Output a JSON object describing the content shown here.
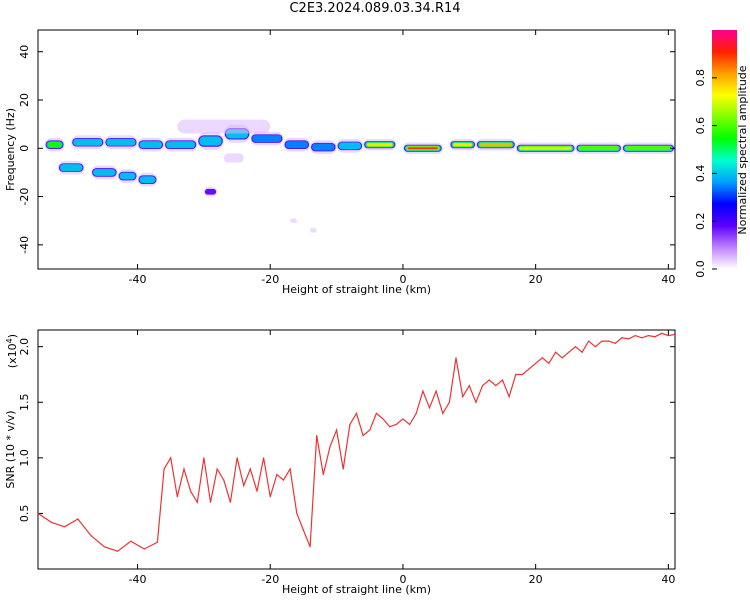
{
  "title": "C2E3.2024.089.03.34.R14",
  "chart_data": [
    {
      "type": "heatmap",
      "xlabel": "Height of straight line (km)",
      "ylabel": "Frequency (Hz)",
      "xlim": [
        -55,
        41
      ],
      "ylim": [
        -50,
        49
      ],
      "xticks": [
        -40,
        -20,
        0,
        20,
        40
      ],
      "yticks": [
        -40,
        -20,
        0,
        20,
        40
      ],
      "colorbar": {
        "label": "Normalized spectral amplitude",
        "range": [
          0,
          1
        ],
        "ticks": [
          "0.0",
          "0.2",
          "0.4",
          "0.6",
          "0.8"
        ],
        "colors": [
          "#ffffff",
          "#c080ff",
          "#5a00ff",
          "#0000ff",
          "#00a0ff",
          "#00ffd0",
          "#00ff00",
          "#80ff00",
          "#ffff00",
          "#ffa000",
          "#ff2000",
          "#ff0090"
        ]
      },
      "blobs": [
        {
          "x1": -54,
          "x2": -51,
          "y": 1.5,
          "h": 3,
          "v": 0.55
        },
        {
          "x1": -50,
          "x2": -45,
          "y": 2.5,
          "h": 3,
          "v": 0.5
        },
        {
          "x1": -45,
          "x2": -40,
          "y": 2.5,
          "h": 3,
          "v": 0.4
        },
        {
          "x1": -40,
          "x2": -36,
          "y": 1.5,
          "h": 3,
          "v": 0.45
        },
        {
          "x1": -36,
          "x2": -31,
          "y": 1.5,
          "h": 3,
          "v": 0.4
        },
        {
          "x1": -31,
          "x2": -27,
          "y": 3,
          "h": 4,
          "v": 0.5
        },
        {
          "x1": -27,
          "x2": -23,
          "y": 6,
          "h": 4,
          "v": 0.4
        },
        {
          "x1": -23,
          "x2": -18,
          "y": 4,
          "h": 3,
          "v": 0.35
        },
        {
          "x1": -18,
          "x2": -14,
          "y": 1.5,
          "h": 3,
          "v": 0.35
        },
        {
          "x1": -14,
          "x2": -10,
          "y": 0.5,
          "h": 3,
          "v": 0.35
        },
        {
          "x1": -10,
          "x2": -6,
          "y": 1,
          "h": 3,
          "v": 0.45
        },
        {
          "x1": -6,
          "x2": -1,
          "y": 1.5,
          "h": 2.5,
          "v": 0.75
        },
        {
          "x1": 0,
          "x2": 6,
          "y": 0,
          "h": 2.5,
          "v": 0.9
        },
        {
          "x1": 7,
          "x2": 11,
          "y": 1.5,
          "h": 2.5,
          "v": 0.75
        },
        {
          "x1": 11,
          "x2": 17,
          "y": 1.5,
          "h": 2.5,
          "v": 0.8
        },
        {
          "x1": 17,
          "x2": 26,
          "y": 0,
          "h": 2.5,
          "v": 0.7
        },
        {
          "x1": 26,
          "x2": 33,
          "y": 0,
          "h": 2.5,
          "v": 0.65
        },
        {
          "x1": 33,
          "x2": 41,
          "y": 0,
          "h": 2.5,
          "v": 0.65
        },
        {
          "x1": -52,
          "x2": -48,
          "y": -8,
          "h": 3,
          "v": 0.45
        },
        {
          "x1": -47,
          "x2": -43,
          "y": -10,
          "h": 3,
          "v": 0.45
        },
        {
          "x1": -43,
          "x2": -40,
          "y": -11.5,
          "h": 3,
          "v": 0.45
        },
        {
          "x1": -40,
          "x2": -37,
          "y": -13,
          "h": 3,
          "v": 0.4
        },
        {
          "x1": -30,
          "x2": -28,
          "y": -18,
          "h": 2,
          "v": 0.18
        },
        {
          "x1": -34,
          "x2": -20,
          "y": 9,
          "h": 3,
          "v": 0.15
        },
        {
          "x1": -27,
          "x2": -24,
          "y": -4,
          "h": 2,
          "v": 0.12
        },
        {
          "x1": -17,
          "x2": -16,
          "y": -30,
          "h": 1,
          "v": 0.05
        },
        {
          "x1": -14,
          "x2": -13,
          "y": -34,
          "h": 1,
          "v": 0.1
        }
      ]
    },
    {
      "type": "line",
      "xlabel": "Height of straight line (km)",
      "ylabel": "SNR (10 * v/v)",
      "multiplier": "(x10",
      "multiplier_exp": "4",
      "multiplier_close": ")",
      "xlim": [
        -55,
        41
      ],
      "ylim": [
        0,
        21500
      ],
      "xticks": [
        -40,
        -20,
        0,
        20,
        40
      ],
      "yticks": [
        5000,
        10000,
        15000,
        20000
      ],
      "ytick_labels": [
        "0.5",
        "1.0",
        "1.5",
        "2.0"
      ],
      "color": "#ee3333",
      "x": [
        -55,
        -53,
        -51,
        -49,
        -47,
        -45,
        -43,
        -41,
        -39,
        -37,
        -36,
        -35,
        -34,
        -33,
        -32,
        -31,
        -30,
        -29,
        -28,
        -27,
        -26,
        -25,
        -24,
        -23,
        -22,
        -21,
        -20,
        -19,
        -18,
        -17,
        -16,
        -15,
        -14,
        -13,
        -12,
        -11,
        -10,
        -9,
        -8,
        -7,
        -6,
        -5,
        -4,
        -3,
        -2,
        -1,
        0,
        1,
        2,
        3,
        4,
        5,
        6,
        7,
        8,
        9,
        10,
        11,
        12,
        13,
        14,
        15,
        16,
        17,
        18,
        19,
        20,
        21,
        22,
        23,
        24,
        25,
        26,
        27,
        28,
        29,
        30,
        31,
        32,
        33,
        34,
        35,
        36,
        37,
        38,
        39,
        40,
        41
      ],
      "y": [
        5000,
        4200,
        3800,
        4500,
        3000,
        2000,
        1600,
        2500,
        1800,
        2400,
        9000,
        10000,
        6500,
        9000,
        7000,
        6000,
        10000,
        6000,
        9000,
        8000,
        6000,
        10000,
        7500,
        9000,
        7000,
        10000,
        6500,
        8500,
        8000,
        9000,
        5000,
        3500,
        2000,
        12000,
        8500,
        11000,
        12500,
        9000,
        13000,
        14000,
        12000,
        12500,
        14000,
        13500,
        12800,
        13000,
        13500,
        13000,
        14000,
        16000,
        14500,
        16000,
        14000,
        15000,
        19000,
        15500,
        16500,
        15000,
        16500,
        17000,
        16500,
        17000,
        15500,
        17500,
        17500,
        18000,
        18500,
        19000,
        18500,
        19500,
        19000,
        19500,
        20000,
        19500,
        20500,
        20000,
        20500,
        20500,
        20300,
        20800,
        20700,
        21000,
        20800,
        21000,
        20900,
        21200,
        21000,
        21100
      ]
    }
  ]
}
